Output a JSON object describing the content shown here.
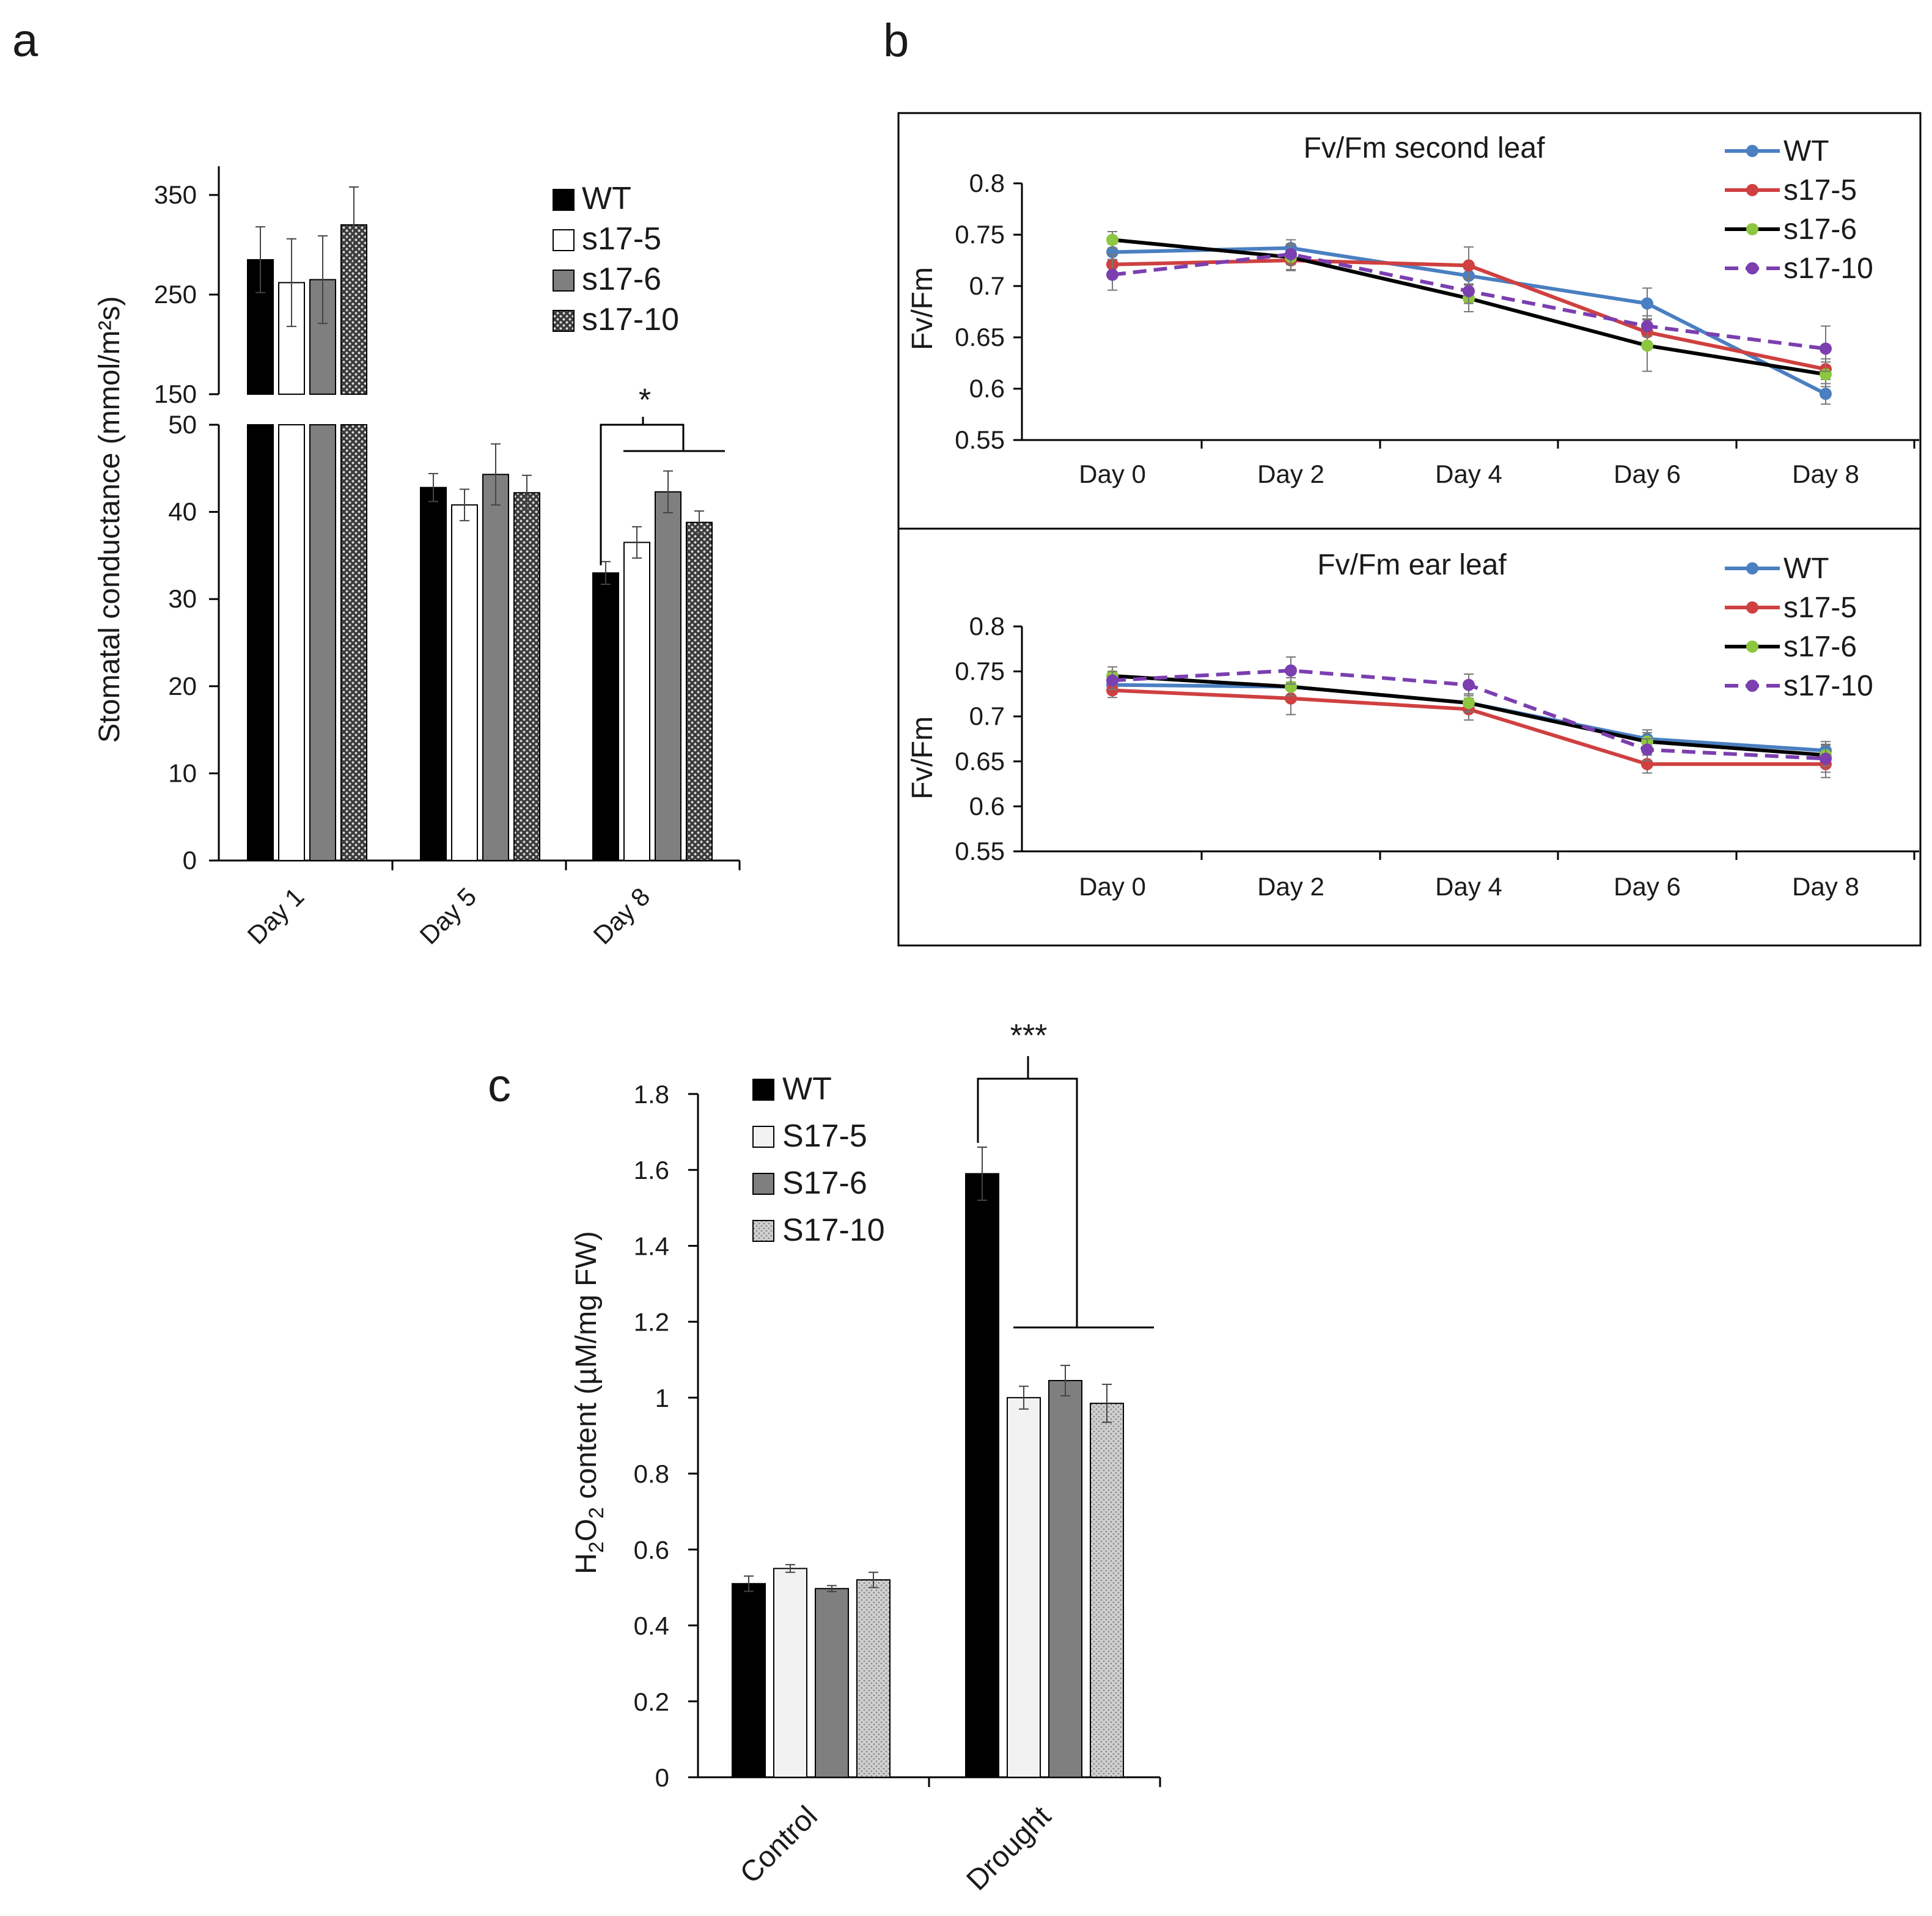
{
  "panels": {
    "a": "a",
    "b": "b",
    "c": "c"
  },
  "colors": {
    "WT_bar": "#000000",
    "s17_5_bar": "#ffffff",
    "s17_6_bar": "#7f7f7f",
    "s17_10_bar": "#9a9a9a",
    "WT_line": "#4a7fc1",
    "s17_5_line": "#cf4040",
    "s17_6_line": "#000000",
    "s17_10_line": "#7b3fb0",
    "s17_6_marker": "#8dc63f"
  },
  "chart_data": [
    {
      "id": "a",
      "type": "bar",
      "title": "",
      "xlabel": "",
      "ylabel": "Stomatal conductance (mmol/m²s)",
      "categories": [
        "Day 1",
        "Day 5",
        "Day 8"
      ],
      "axis_break": {
        "lower_ylim": [
          0,
          50
        ],
        "upper_ylim": [
          150,
          350
        ]
      },
      "yticks_lower": [
        "0",
        "10",
        "20",
        "30",
        "40",
        "50"
      ],
      "yticks_upper": [
        "150",
        "250",
        "350"
      ],
      "series": [
        {
          "name": "WT",
          "values": [
            285,
            42.8,
            33.0
          ],
          "errors": [
            33,
            1.6,
            1.3
          ]
        },
        {
          "name": "s17-5",
          "values": [
            262,
            40.8,
            36.5
          ],
          "errors": [
            44,
            1.8,
            1.8
          ]
        },
        {
          "name": "s17-6",
          "values": [
            265,
            44.3,
            42.3
          ],
          "errors": [
            44,
            3.5,
            2.4
          ]
        },
        {
          "name": "s17-10",
          "values": [
            320,
            42.2,
            38.8
          ],
          "errors": [
            38,
            2.0,
            1.3
          ]
        }
      ],
      "annotations": [
        "*"
      ],
      "legend": [
        "WT",
        "s17-5",
        "s17-6",
        "s17-10"
      ]
    },
    {
      "id": "b1",
      "type": "line",
      "title": "Fv/Fm second leaf",
      "ylabel": "Fv/Fm",
      "categories": [
        "Day 0",
        "Day 2",
        "Day 4",
        "Day 6",
        "Day 8"
      ],
      "ylim": [
        0.55,
        0.8
      ],
      "yticks": [
        "0.8",
        "0.75",
        "0.7",
        "0.65",
        "0.6",
        "0.55"
      ],
      "series": [
        {
          "name": "WT",
          "values": [
            0.733,
            0.737,
            0.71,
            0.683,
            0.595
          ],
          "errors": [
            0.008,
            0.008,
            0.012,
            0.015,
            0.01
          ]
        },
        {
          "name": "s17-5",
          "values": [
            0.721,
            0.725,
            0.72,
            0.655,
            0.619
          ],
          "errors": [
            0.01,
            0.01,
            0.018,
            0.012,
            0.01
          ]
        },
        {
          "name": "s17-6",
          "values": [
            0.745,
            0.728,
            0.688,
            0.642,
            0.614
          ],
          "errors": [
            0.008,
            0.012,
            0.013,
            0.025,
            0.012
          ]
        },
        {
          "name": "s17-10",
          "values": [
            0.711,
            0.731,
            0.695,
            0.661,
            0.639
          ],
          "errors": [
            0.015,
            0.01,
            0.012,
            0.01,
            0.022
          ]
        }
      ],
      "legend": [
        "WT",
        "s17-5",
        "s17-6",
        "s17-10"
      ]
    },
    {
      "id": "b2",
      "type": "line",
      "title": "Fv/Fm ear leaf",
      "ylabel": "Fv/Fm",
      "categories": [
        "Day 0",
        "Day 2",
        "Day 4",
        "Day 6",
        "Day 8"
      ],
      "ylim": [
        0.55,
        0.8
      ],
      "yticks": [
        "0.8",
        "0.75",
        "0.7",
        "0.65",
        "0.6",
        "0.55"
      ],
      "series": [
        {
          "name": "WT",
          "values": [
            0.735,
            0.733,
            0.715,
            0.675,
            0.662
          ],
          "errors": [
            0.008,
            0.01,
            0.01,
            0.01,
            0.01
          ]
        },
        {
          "name": "s17-5",
          "values": [
            0.729,
            0.72,
            0.708,
            0.647,
            0.647
          ],
          "errors": [
            0.008,
            0.018,
            0.012,
            0.01,
            0.015
          ]
        },
        {
          "name": "s17-6",
          "values": [
            0.745,
            0.733,
            0.715,
            0.672,
            0.657
          ],
          "errors": [
            0.01,
            0.01,
            0.01,
            0.01,
            0.012
          ]
        },
        {
          "name": "s17-10",
          "values": [
            0.74,
            0.751,
            0.735,
            0.663,
            0.653
          ],
          "errors": [
            0.01,
            0.015,
            0.012,
            0.012,
            0.015
          ]
        }
      ],
      "legend": [
        "WT",
        "s17-5",
        "s17-6",
        "s17-10"
      ]
    },
    {
      "id": "c",
      "type": "bar",
      "title": "",
      "ylabel_parts": [
        "H",
        "2",
        "O",
        "2",
        " content (µM/mg FW)"
      ],
      "categories": [
        "Control",
        "Drought"
      ],
      "ylim": [
        0,
        1.8
      ],
      "yticks": [
        "0",
        "0.2",
        "0.4",
        "0.6",
        "0.8",
        "1",
        "1.2",
        "1.4",
        "1.6",
        "1.8"
      ],
      "series": [
        {
          "name": "WT",
          "values": [
            0.51,
            1.59
          ],
          "errors": [
            0.02,
            0.07
          ]
        },
        {
          "name": "S17-5",
          "values": [
            0.55,
            1.0
          ],
          "errors": [
            0.01,
            0.03
          ]
        },
        {
          "name": "S17-6",
          "values": [
            0.497,
            1.045
          ],
          "errors": [
            0.008,
            0.04
          ]
        },
        {
          "name": "S17-10",
          "values": [
            0.52,
            0.985
          ],
          "errors": [
            0.02,
            0.05
          ]
        }
      ],
      "annotations": [
        "***"
      ],
      "legend": [
        "WT",
        "S17-5",
        "S17-6",
        "S17-10"
      ]
    }
  ]
}
